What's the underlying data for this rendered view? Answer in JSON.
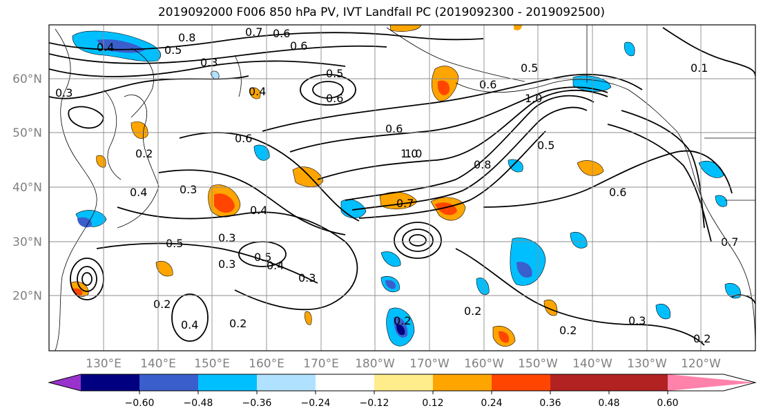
{
  "title": "2019092000 F006 850 hPa PV, IVT Landfall PC (2019092300 - 2019092500)",
  "lat_labels": [
    "60°N",
    "50°N",
    "40°N",
    "30°N",
    "20°N"
  ],
  "lon_labels": [
    "130°E",
    "140°E",
    "150°E",
    "160°E",
    "170°E",
    "180°W",
    "170°W",
    "160°W",
    "150°W",
    "140°W",
    "130°W",
    "120°W"
  ],
  "colorbar": {
    "colors": [
      "#9932cc",
      "#000080",
      "#3a5fcd",
      "#00bfff",
      "#b0e2ff",
      "#ffffff",
      "#ffec8b",
      "#ffa500",
      "#ff4500",
      "#b22222",
      "#ff82ab"
    ],
    "tick_labels": [
      "−0.60",
      "−0.48",
      "−0.36",
      "−0.24",
      "−0.12",
      "0.12",
      "0.24",
      "0.36",
      "0.48",
      "0.60"
    ]
  },
  "contour_labels": [
    "0.8",
    "0.7",
    "0.6",
    "0.4",
    "0.5",
    "0.3",
    "0.6",
    "0.5",
    "0.6",
    "0.6",
    "0.5",
    "1.0",
    "1.0",
    "0.6",
    "0.3",
    "0.4",
    "0.2",
    "0.6",
    "0.3",
    "0.4",
    "0.4",
    "0.7",
    "0.8",
    "1.0",
    "0.5",
    "0.6",
    "0.3",
    "0.5",
    "0.3",
    "0.5",
    "0.4",
    "0.3",
    "0.2",
    "0.2",
    "0.2",
    "0.4",
    "0.2",
    "0.2",
    "0.2",
    "0.3",
    "0.7",
    "0.1"
  ],
  "shading_colors": {
    "neg_dark": "#3a5fcd",
    "neg_mid": "#00bfff",
    "neg_light": "#b0e2ff",
    "pos_light": "#ffec8b",
    "pos_mid": "#ffa500",
    "pos_dark": "#ff4500",
    "deep_neg": "#000080"
  }
}
